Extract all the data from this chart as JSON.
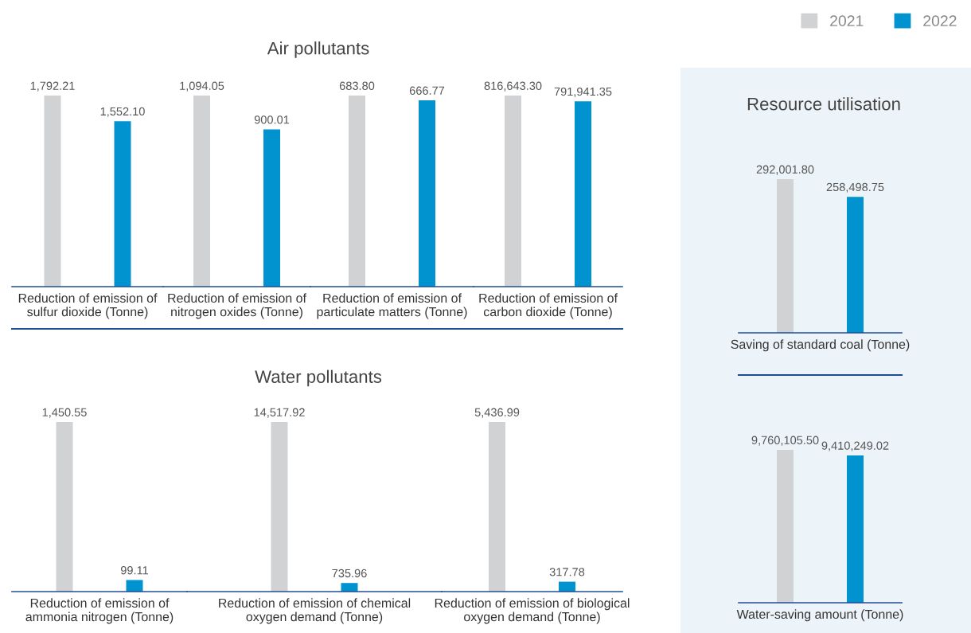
{
  "chart_data": [
    {
      "type": "other",
      "title": "Air pollutants"
    },
    {
      "type": "bar",
      "categories": [
        "Reduction of emission of\nsulfur dioxide (Tonne)"
      ],
      "series": [
        {
          "color": "#d1d2d4",
          "values": [
            1792.21
          ],
          "value_labels": [
            "1,792.21"
          ]
        },
        {
          "color": "#0093d0",
          "values": [
            1552.1
          ],
          "value_labels": [
            "1,552.10"
          ]
        }
      ]
    },
    {
      "type": "bar",
      "categories": [
        "Reduction of emission of\nnitrogen oxides (Tonne)"
      ],
      "series": [
        {
          "color": "#d1d2d4",
          "values": [
            1094.05
          ],
          "value_labels": [
            "1,094.05"
          ]
        },
        {
          "color": "#0093d0",
          "values": [
            900.01
          ],
          "value_labels": [
            "900.01"
          ]
        }
      ]
    },
    {
      "type": "bar",
      "categories": [
        "Reduction of emission of\nparticulate matters (Tonne)"
      ],
      "series": [
        {
          "color": "#d1d2d4",
          "values": [
            683.8
          ],
          "value_labels": [
            "683.80"
          ]
        },
        {
          "color": "#0093d0",
          "values": [
            666.77
          ],
          "value_labels": [
            "666.77"
          ]
        }
      ]
    },
    {
      "type": "bar",
      "categories": [
        "Reduction of emission of\ncarbon dioxide (Tonne)"
      ],
      "series": [
        {
          "color": "#d1d2d4",
          "values": [
            816643.3
          ],
          "value_labels": [
            "816,643.30"
          ]
        },
        {
          "color": "#0093d0",
          "values": [
            791941.35
          ],
          "value_labels": [
            "791,941.35"
          ]
        }
      ]
    },
    {
      "type": "other",
      "title": "Water pollutants"
    },
    {
      "type": "bar",
      "categories": [
        "Reduction of emission of\nammonia nitrogen (Tonne)"
      ],
      "series": [
        {
          "color": "#d1d2d4",
          "values": [
            1450.55
          ],
          "value_labels": [
            "1,450.55"
          ]
        },
        {
          "color": "#0093d0",
          "values": [
            99.11
          ],
          "value_labels": [
            "99.11"
          ]
        }
      ]
    },
    {
      "type": "bar",
      "categories": [
        "Reduction of emission of chemical\noxygen demand (Tonne)"
      ],
      "series": [
        {
          "color": "#d1d2d4",
          "values": [
            14517.92
          ],
          "value_labels": [
            "14,517.92"
          ]
        },
        {
          "color": "#0093d0",
          "values": [
            735.96
          ],
          "value_labels": [
            "735.96"
          ]
        }
      ]
    },
    {
      "type": "bar",
      "categories": [
        "Reduction of emission of biological\noxygen demand (Tonne)"
      ],
      "series": [
        {
          "color": "#d1d2d4",
          "values": [
            5436.99
          ],
          "value_labels": [
            "5,436.99"
          ]
        },
        {
          "color": "#0093d0",
          "values": [
            317.78
          ],
          "value_labels": [
            "317.78"
          ]
        }
      ]
    },
    {
      "type": "other",
      "title": "Resource utilisation"
    },
    {
      "type": "bar",
      "categories": [
        "Saving of standard coal (Tonne)"
      ],
      "legend": "top right",
      "series": [
        {
          "name": "2021",
          "color": "#d1d2d4",
          "values": [
            292001.8
          ],
          "value_labels": [
            "292,001.80"
          ]
        },
        {
          "name": "2022",
          "color": "#0093d0",
          "values": [
            258498.75
          ],
          "value_labels": [
            "258,498.75"
          ]
        }
      ]
    },
    {
      "type": "bar",
      "categories": [
        "Water-saving amount (Tonne)"
      ],
      "series": [
        {
          "color": "#d1d2d4",
          "values": [
            9760105.5
          ],
          "value_labels": [
            "9,760,105.50"
          ]
        },
        {
          "color": "#0093d0",
          "values": [
            9410249.02
          ],
          "value_labels": [
            "9,410,249.02"
          ]
        }
      ]
    }
  ]
}
